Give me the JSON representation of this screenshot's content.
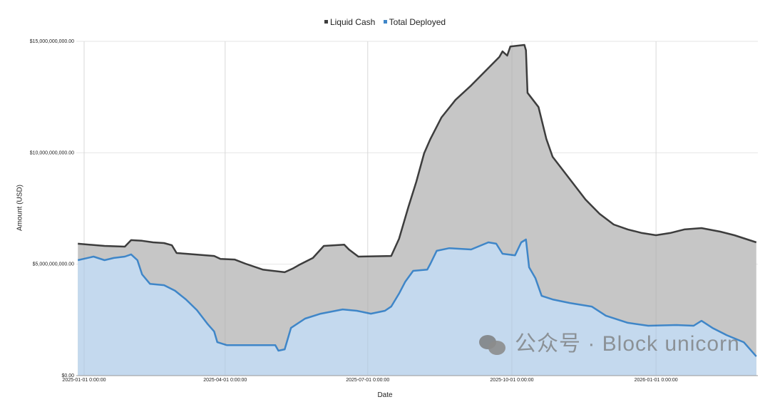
{
  "chart_data": {
    "type": "area",
    "title": "",
    "xlabel": "Date",
    "ylabel": "Amount (USD)",
    "xlim": [
      "2024-12-27",
      "2026-03-07"
    ],
    "ylim": [
      0,
      15000000000
    ],
    "grid": true,
    "legend_placement": "top-center",
    "y_ticks": [
      {
        "value": 0,
        "label": "$0.00"
      },
      {
        "value": 5000000000,
        "label": "$5,000,000,000.00"
      },
      {
        "value": 10000000000,
        "label": "$10,000,000,000.00"
      },
      {
        "value": 15000000000,
        "label": "$15,000,000,000.00"
      }
    ],
    "x_ticks": [
      {
        "value": "2025-01-01",
        "label": "2025-01-01 0:00:00"
      },
      {
        "value": "2025-04-01",
        "label": "2025-04-01 0:00:00"
      },
      {
        "value": "2025-07-01",
        "label": "2025-07-01 0:00:00"
      },
      {
        "value": "2025-10-01",
        "label": "2025-10-01 0:00:00"
      },
      {
        "value": "2026-01-01",
        "label": "2026-01-01 0:00:00"
      }
    ],
    "series": [
      {
        "name": "Liquid Cash",
        "line_color": "#3d3d3d",
        "fill_color": "#c6c6c6",
        "points": [
          [
            "2024-12-28",
            5920000000.0
          ],
          [
            "2025-01-14",
            5820000000.0
          ],
          [
            "2025-01-27",
            5790000000.0
          ],
          [
            "2025-01-31",
            6080000000.0
          ],
          [
            "2025-02-07",
            6050000000.0
          ],
          [
            "2025-02-14",
            5980000000.0
          ],
          [
            "2025-02-21",
            5950000000.0
          ],
          [
            "2025-02-26",
            5850000000.0
          ],
          [
            "2025-03-01",
            5500000000.0
          ],
          [
            "2025-03-07",
            5470000000.0
          ],
          [
            "2025-03-25",
            5370000000.0
          ],
          [
            "2025-03-29",
            5240000000.0
          ],
          [
            "2025-04-07",
            5210000000.0
          ],
          [
            "2025-04-14",
            5020000000.0
          ],
          [
            "2025-04-25",
            4760000000.0
          ],
          [
            "2025-05-09",
            4640000000.0
          ],
          [
            "2025-05-14",
            4800000000.0
          ],
          [
            "2025-05-18",
            4960000000.0
          ],
          [
            "2025-05-27",
            5280000000.0
          ],
          [
            "2025-06-03",
            5820000000.0
          ],
          [
            "2025-06-16",
            5880000000.0
          ],
          [
            "2025-06-19",
            5660000000.0
          ],
          [
            "2025-06-25",
            5340000000.0
          ],
          [
            "2025-07-16",
            5370000000.0
          ],
          [
            "2025-07-21",
            6140000000.0
          ],
          [
            "2025-07-27",
            7580000000.0
          ],
          [
            "2025-08-01",
            8700000000.0
          ],
          [
            "2025-08-06",
            9980000000.0
          ],
          [
            "2025-08-10",
            10620000000.0
          ],
          [
            "2025-08-17",
            11580000000.0
          ],
          [
            "2025-08-26",
            12370000000.0
          ],
          [
            "2025-09-05",
            13020000000.0
          ],
          [
            "2025-09-14",
            13660000000.0
          ],
          [
            "2025-09-23",
            14300000000.0
          ],
          [
            "2025-09-25",
            14550000000.0
          ],
          [
            "2025-09-28",
            14360000000.0
          ],
          [
            "2025-09-30",
            14770000000.0
          ],
          [
            "2025-10-09",
            14840000000.0
          ],
          [
            "2025-10-10",
            14600000000.0
          ],
          [
            "2025-10-11",
            12690000000.0
          ],
          [
            "2025-10-18",
            12050000000.0
          ],
          [
            "2025-10-23",
            10620000000.0
          ],
          [
            "2025-10-27",
            9820000000.0
          ],
          [
            "2025-11-03",
            9180000000.0
          ],
          [
            "2025-11-10",
            8540000000.0
          ],
          [
            "2025-11-17",
            7900000000.0
          ],
          [
            "2025-11-26",
            7260000000.0
          ],
          [
            "2025-12-05",
            6780000000.0
          ],
          [
            "2025-12-14",
            6560000000.0
          ],
          [
            "2025-12-23",
            6400000000.0
          ],
          [
            "2026-01-01",
            6300000000.0
          ],
          [
            "2026-01-10",
            6400000000.0
          ],
          [
            "2026-01-19",
            6560000000.0
          ],
          [
            "2026-01-30",
            6620000000.0
          ],
          [
            "2026-02-11",
            6460000000.0
          ],
          [
            "2026-02-20",
            6300000000.0
          ],
          [
            "2026-03-06",
            5980000000.0
          ]
        ]
      },
      {
        "name": "Total Deployed",
        "line_color": "#3f86c8",
        "fill_color": "#c4d9ee",
        "points": [
          [
            "2024-12-28",
            5180000000.0
          ],
          [
            "2025-01-07",
            5340000000.0
          ],
          [
            "2025-01-14",
            5180000000.0
          ],
          [
            "2025-01-20",
            5280000000.0
          ],
          [
            "2025-01-27",
            5340000000.0
          ],
          [
            "2025-01-31",
            5440000000.0
          ],
          [
            "2025-02-04",
            5180000000.0
          ],
          [
            "2025-02-07",
            4540000000.0
          ],
          [
            "2025-02-12",
            4120000000.0
          ],
          [
            "2025-02-21",
            4060000000.0
          ],
          [
            "2025-02-28",
            3810000000.0
          ],
          [
            "2025-03-07",
            3420000000.0
          ],
          [
            "2025-03-14",
            2940000000.0
          ],
          [
            "2025-03-21",
            2300000000.0
          ],
          [
            "2025-03-25",
            1980000000.0
          ],
          [
            "2025-03-27",
            1500000000.0
          ],
          [
            "2025-04-02",
            1370000000.0
          ],
          [
            "2025-04-21",
            1370000000.0
          ],
          [
            "2025-05-03",
            1370000000.0
          ],
          [
            "2025-05-05",
            1120000000.0
          ],
          [
            "2025-05-09",
            1180000000.0
          ],
          [
            "2025-05-13",
            2140000000.0
          ],
          [
            "2025-05-22",
            2560000000.0
          ],
          [
            "2025-06-01",
            2780000000.0
          ],
          [
            "2025-06-15",
            2970000000.0
          ],
          [
            "2025-06-24",
            2910000000.0
          ],
          [
            "2025-07-03",
            2780000000.0
          ],
          [
            "2025-07-12",
            2910000000.0
          ],
          [
            "2025-07-16",
            3100000000.0
          ],
          [
            "2025-07-21",
            3680000000.0
          ],
          [
            "2025-07-25",
            4220000000.0
          ],
          [
            "2025-07-30",
            4700000000.0
          ],
          [
            "2025-08-08",
            4760000000.0
          ],
          [
            "2025-08-10",
            5020000000.0
          ],
          [
            "2025-08-14",
            5600000000.0
          ],
          [
            "2025-08-22",
            5720000000.0
          ],
          [
            "2025-09-05",
            5660000000.0
          ],
          [
            "2025-09-16",
            5980000000.0
          ],
          [
            "2025-09-21",
            5920000000.0
          ],
          [
            "2025-09-25",
            5470000000.0
          ],
          [
            "2025-10-03",
            5400000000.0
          ],
          [
            "2025-10-07",
            5980000000.0
          ],
          [
            "2025-10-10",
            6110000000.0
          ],
          [
            "2025-10-12",
            4860000000.0
          ],
          [
            "2025-10-16",
            4380000000.0
          ],
          [
            "2025-10-20",
            3580000000.0
          ],
          [
            "2025-10-27",
            3420000000.0
          ],
          [
            "2025-11-07",
            3260000000.0
          ],
          [
            "2025-11-21",
            3100000000.0
          ],
          [
            "2025-11-30",
            2690000000.0
          ],
          [
            "2025-12-14",
            2370000000.0
          ],
          [
            "2025-12-27",
            2240000000.0
          ],
          [
            "2026-01-14",
            2270000000.0
          ],
          [
            "2026-01-25",
            2240000000.0
          ],
          [
            "2026-01-30",
            2460000000.0
          ],
          [
            "2026-02-06",
            2140000000.0
          ],
          [
            "2026-02-15",
            1820000000.0
          ],
          [
            "2026-02-26",
            1500000000.0
          ],
          [
            "2026-03-02",
            1180000000.0
          ],
          [
            "2026-03-06",
            860000000.0
          ]
        ]
      }
    ]
  },
  "watermark": "公众号 · Block unicorn"
}
